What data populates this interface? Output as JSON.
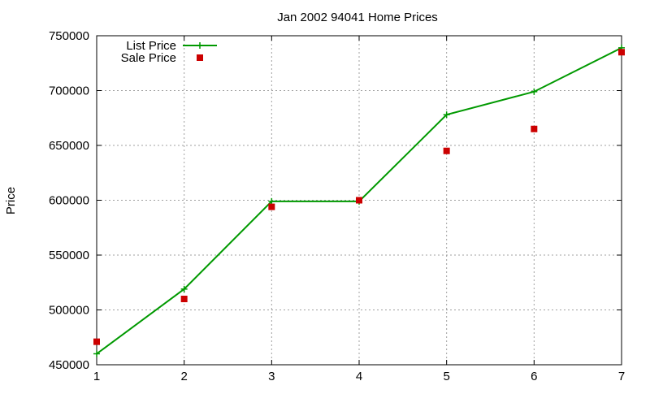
{
  "chart_data": {
    "type": "line",
    "title": "Jan 2002 94041 Home Prices",
    "xlabel": "",
    "ylabel": "Price",
    "xlim": [
      1,
      7
    ],
    "ylim": [
      450000,
      750000
    ],
    "x_ticks": [
      1,
      2,
      3,
      4,
      5,
      6,
      7
    ],
    "y_ticks": [
      450000,
      500000,
      550000,
      600000,
      650000,
      700000,
      750000
    ],
    "grid": true,
    "legend_position": "top-left",
    "series": [
      {
        "name": "List Price",
        "style": "linespoints",
        "marker": "plus",
        "color": "#009900",
        "x": [
          1,
          2,
          3,
          4,
          5,
          6,
          7
        ],
        "y": [
          460000,
          519000,
          599000,
          599000,
          678000,
          699000,
          739000
        ]
      },
      {
        "name": "Sale Price",
        "style": "points",
        "marker": "square",
        "color": "#cc0000",
        "x": [
          1,
          2,
          3,
          4,
          5,
          6,
          7
        ],
        "y": [
          471000,
          510000,
          594000,
          600000,
          645000,
          665000,
          735000
        ]
      }
    ]
  }
}
